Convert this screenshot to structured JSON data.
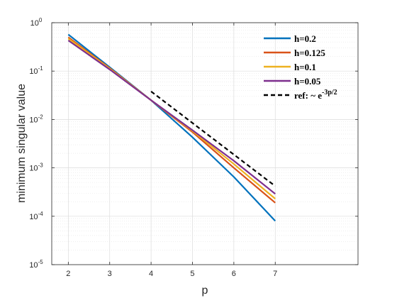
{
  "chart_data": {
    "type": "line",
    "title": "",
    "xlabel": "p",
    "ylabel": "minimum singular value",
    "xlim": [
      1.6,
      9.0
    ],
    "ylim": [
      1e-05,
      1
    ],
    "yscale": "log",
    "grid": true,
    "minor_grid": true,
    "legend_position": "top-right",
    "x_ticks": [
      2,
      3,
      4,
      5,
      6,
      7
    ],
    "y_ticks": [
      {
        "value": 1e-05,
        "label_base": "10",
        "label_exp": "-5"
      },
      {
        "value": 0.0001,
        "label_base": "10",
        "label_exp": "-4"
      },
      {
        "value": 0.001,
        "label_base": "10",
        "label_exp": "-3"
      },
      {
        "value": 0.01,
        "label_base": "10",
        "label_exp": "-2"
      },
      {
        "value": 0.1,
        "label_base": "10",
        "label_exp": "-1"
      },
      {
        "value": 1,
        "label_base": "10",
        "label_exp": "0"
      }
    ],
    "series": [
      {
        "name": "h=0.2",
        "color": "#0072BD",
        "dashed": false,
        "x": [
          2,
          3,
          4,
          5,
          6,
          7
        ],
        "y": [
          0.57,
          0.12,
          0.025,
          0.0043,
          0.00065,
          8e-05
        ]
      },
      {
        "name": "h=0.125",
        "color": "#D95319",
        "dashed": false,
        "x": [
          2,
          3,
          4,
          5,
          6,
          7
        ],
        "y": [
          0.5,
          0.115,
          0.025,
          0.0055,
          0.001,
          0.00019
        ]
      },
      {
        "name": "h=0.1",
        "color": "#EDB120",
        "dashed": false,
        "x": [
          2,
          3,
          4,
          5,
          6,
          7
        ],
        "y": [
          0.47,
          0.112,
          0.025,
          0.0058,
          0.0012,
          0.00023
        ]
      },
      {
        "name": "h=0.05",
        "color": "#7E2F8E",
        "dashed": false,
        "x": [
          2,
          3,
          4,
          5,
          6,
          7
        ],
        "y": [
          0.43,
          0.108,
          0.025,
          0.006,
          0.0014,
          0.00029
        ]
      },
      {
        "name": "ref: ~ e",
        "name_sup": "-3p/2",
        "color": "#000000",
        "dashed": true,
        "x": [
          4,
          7
        ],
        "y": [
          0.038,
          0.00042
        ]
      }
    ]
  }
}
